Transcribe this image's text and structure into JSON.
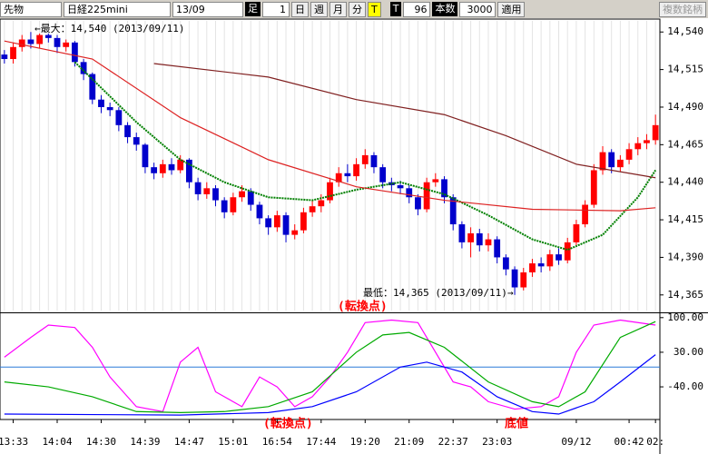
{
  "toolbar": {
    "market": "先物",
    "symbol": "日経225mini",
    "contract": "13/09",
    "bar_label": "足",
    "bar_count": "1",
    "day": "日",
    "week": "週",
    "month": "月",
    "minute": "分",
    "tick_active": "T",
    "tick": "T",
    "tick_value": "96",
    "count_label": "本数",
    "count_value": "3000",
    "apply": "適用",
    "multi": "複数銘柄"
  },
  "chart_data": [
    {
      "type": "candlestick",
      "categories": [
        null,
        "13:33",
        null,
        null,
        null,
        null,
        "14:04",
        null,
        null,
        null,
        null,
        "14:30",
        null,
        null,
        null,
        null,
        "14:39",
        null,
        null,
        null,
        null,
        "14:47",
        null,
        null,
        null,
        null,
        "15:01",
        null,
        null,
        null,
        null,
        "16:54",
        null,
        null,
        null,
        null,
        "17:44",
        null,
        null,
        null,
        null,
        "19:20",
        null,
        null,
        null,
        null,
        "21:09",
        null,
        null,
        null,
        null,
        "22:37",
        null,
        null,
        null,
        null,
        "23:03",
        null,
        null,
        null,
        null,
        null,
        null,
        null,
        null,
        "09/12",
        null,
        null,
        null,
        null,
        null,
        "00:42",
        null,
        null,
        "02:"
      ],
      "open": [
        14525,
        14522,
        14530,
        14535,
        14532,
        14538,
        14536,
        14530,
        14533,
        14520,
        14512,
        14495,
        14490,
        14488,
        14478,
        14470,
        14465,
        14450,
        14446,
        14452,
        14448,
        14455,
        14440,
        14432,
        14436,
        14428,
        14420,
        14430,
        14434,
        14425,
        14416,
        14410,
        14418,
        14405,
        14408,
        14420,
        14424,
        14428,
        14440,
        14446,
        14444,
        14452,
        14458,
        14450,
        14440,
        14438,
        14436,
        14430,
        14422,
        14440,
        14442,
        14430,
        14412,
        14400,
        14406,
        14398,
        14402,
        14390,
        14382,
        14370,
        14380,
        14386,
        14384,
        14392,
        14388,
        14400,
        14412,
        14425,
        14448,
        14460,
        14450,
        14455,
        14462,
        14466,
        14468
      ],
      "high": [
        14528,
        14533,
        14538,
        14540,
        14539,
        14539,
        14538,
        14535,
        14534,
        14522,
        14513,
        14498,
        14493,
        14490,
        14480,
        14473,
        14466,
        14453,
        14455,
        14456,
        14458,
        14456,
        14443,
        14440,
        14438,
        14430,
        14433,
        14438,
        14436,
        14427,
        14418,
        14421,
        14420,
        14412,
        14423,
        14428,
        14432,
        14443,
        14450,
        14452,
        14456,
        14462,
        14460,
        14452,
        14443,
        14441,
        14438,
        14432,
        14443,
        14446,
        14444,
        14432,
        14414,
        14410,
        14409,
        14406,
        14404,
        14392,
        14384,
        14383,
        14389,
        14390,
        14395,
        14396,
        14403,
        14415,
        14428,
        14452,
        14464,
        14462,
        14458,
        14466,
        14470,
        14472,
        14485
      ],
      "low": [
        14519,
        14519,
        14527,
        14529,
        14529,
        14533,
        14526,
        14527,
        14517,
        14508,
        14492,
        14486,
        14484,
        14474,
        14466,
        14461,
        14446,
        14442,
        14443,
        14445,
        14446,
        14436,
        14428,
        14429,
        14424,
        14416,
        14418,
        14427,
        14421,
        14412,
        14405,
        14407,
        14400,
        14402,
        14406,
        14417,
        14420,
        14426,
        14437,
        14440,
        14441,
        14449,
        14446,
        14436,
        14434,
        14432,
        14426,
        14418,
        14420,
        14437,
        14426,
        14408,
        14396,
        14390,
        14394,
        14394,
        14386,
        14378,
        14365,
        14368,
        14377,
        14380,
        14381,
        14385,
        14386,
        14398,
        14410,
        14423,
        14445,
        14446,
        14447,
        14452,
        14458,
        14462,
        14465
      ],
      "close": [
        14522,
        14530,
        14535,
        14532,
        14538,
        14536,
        14530,
        14533,
        14520,
        14512,
        14495,
        14490,
        14488,
        14478,
        14470,
        14465,
        14450,
        14446,
        14452,
        14448,
        14455,
        14440,
        14432,
        14436,
        14428,
        14420,
        14430,
        14434,
        14425,
        14416,
        14410,
        14418,
        14405,
        14408,
        14420,
        14424,
        14428,
        14440,
        14446,
        14444,
        14452,
        14458,
        14450,
        14440,
        14438,
        14436,
        14430,
        14422,
        14440,
        14442,
        14430,
        14412,
        14400,
        14406,
        14398,
        14402,
        14390,
        14382,
        14370,
        14380,
        14386,
        14384,
        14392,
        14388,
        14400,
        14412,
        14425,
        14448,
        14460,
        14450,
        14455,
        14462,
        14466,
        14468,
        14478
      ],
      "up_color": "#ff0000",
      "down_color": "#0000cc",
      "series": [
        {
          "color": "#008000",
          "dashed": true,
          "x": [
            8,
            15,
            20,
            25,
            30,
            35,
            40,
            45,
            50,
            55,
            60,
            64,
            68,
            72,
            74
          ],
          "values": [
            14520,
            14480,
            14455,
            14440,
            14430,
            14428,
            14435,
            14440,
            14432,
            14418,
            14402,
            14395,
            14405,
            14430,
            14448
          ]
        },
        {
          "color": "#dd2222",
          "x": [
            0,
            10,
            20,
            30,
            40,
            50,
            60,
            70,
            74
          ],
          "values": [
            14534,
            14522,
            14483,
            14455,
            14437,
            14428,
            14422,
            14421,
            14423
          ]
        },
        {
          "color": "#802020",
          "x": [
            17,
            30,
            40,
            50,
            57,
            65,
            74
          ],
          "values": [
            14519,
            14510,
            14495,
            14485,
            14471,
            14452,
            14443
          ]
        }
      ],
      "ylim": [
        14354,
        14548
      ],
      "yticks": [
        {
          "value": 14540,
          "label": "14,540"
        },
        {
          "value": 14515,
          "label": "14,515"
        },
        {
          "value": 14490,
          "label": "14,490"
        },
        {
          "value": 14465,
          "label": "14,465"
        },
        {
          "value": 14440,
          "label": "14,440"
        },
        {
          "value": 14415,
          "label": "14,415"
        },
        {
          "value": 14390,
          "label": "14,390"
        },
        {
          "value": 14365,
          "label": "14,365"
        }
      ],
      "annotations": [
        "←最大：14,540 (2013/09/11)",
        "最低：14,365 (2013/09/11)→",
        "(転換点)"
      ]
    },
    {
      "type": "line",
      "series": [
        {
          "color": "#ff00ff",
          "x": [
            0,
            3,
            5,
            8,
            10,
            12,
            15,
            18,
            20,
            22,
            24,
            27,
            29,
            31,
            33,
            35,
            37,
            39,
            41,
            44,
            47,
            49,
            51,
            53,
            55,
            58,
            61,
            63,
            65,
            67,
            70,
            72,
            74
          ],
          "values": [
            20,
            60,
            85,
            80,
            40,
            -20,
            -80,
            -90,
            10,
            40,
            -50,
            -80,
            -20,
            -40,
            -80,
            -60,
            -20,
            30,
            90,
            95,
            90,
            30,
            -30,
            -40,
            -70,
            -85,
            -80,
            -60,
            30,
            85,
            95,
            90,
            85
          ]
        },
        {
          "color": "#00aa00",
          "x": [
            0,
            5,
            10,
            15,
            20,
            25,
            30,
            35,
            40,
            43,
            46,
            50,
            55,
            60,
            63,
            66,
            70,
            74
          ],
          "values": [
            -30,
            -40,
            -60,
            -90,
            -92,
            -90,
            -80,
            -50,
            30,
            65,
            70,
            40,
            -30,
            -70,
            -80,
            -50,
            60,
            92
          ]
        },
        {
          "color": "#0000ff",
          "x": [
            0,
            10,
            20,
            30,
            35,
            40,
            45,
            48,
            52,
            56,
            60,
            63,
            67,
            70,
            74
          ],
          "values": [
            -95,
            -96,
            -97,
            -92,
            -80,
            -50,
            0,
            10,
            -10,
            -60,
            -90,
            -95,
            -70,
            -30,
            25
          ]
        }
      ],
      "reference_line": 0,
      "ylim": [
        -106,
        107
      ],
      "yticks": [
        {
          "value": 100,
          "label": "100.00"
        },
        {
          "value": 30,
          "label": "30.00"
        },
        {
          "value": -40,
          "label": "-40.00"
        }
      ],
      "annotations": [
        "(転換点)",
        "底値"
      ]
    }
  ]
}
